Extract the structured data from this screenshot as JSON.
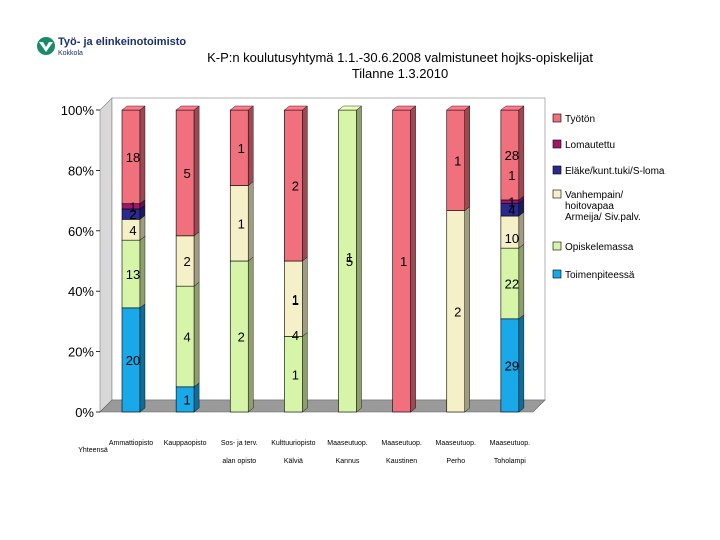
{
  "logo": {
    "name": "Työ- ja elinkeinotoimisto",
    "place": "Kokkola"
  },
  "header": {
    "title_line1": "K-P:n koulutusyhtymä 1.1.-30.6.2008 valmistuneet hojks-opiskelijat",
    "title_line2": "Tilanne 1.3.2010"
  },
  "colors": {
    "Työtön": "#f0707e",
    "Lomautettu": "#a0186e",
    "Eläke/kunt.tuki/S-loma": "#2a2a8c",
    "Vanhempain/ hoitovapaa Armeija/ Siv.palv.": "#f5f0c8",
    "Opiskelemassa": "#d7f5a8",
    "Toimenpiteessä": "#19a8e8"
  },
  "chart_data": {
    "type": "bar",
    "stacked": "percent",
    "title": "K-P:n koulutusyhtymä 1.1.-30.6.2008 valmistuneet hojks-opiskelijat Tilanne 1.3.2010",
    "ylabel": "",
    "ylim": [
      0,
      100
    ],
    "yticks": [
      "0%",
      "20%",
      "40%",
      "60%",
      "80%",
      "100%"
    ],
    "legend_position": "right",
    "categories_top": [
      "Ammattiopisto",
      "Kauppaopisto",
      "Sos- ja terv.",
      "Kulttuuriopisto",
      "Maaseutuop.",
      "Maaseutuop.",
      "Maaseutuop.",
      "Maaseutuop."
    ],
    "categories_bottom": [
      "Yhteensä",
      "",
      "alan opisto",
      "Kälviä",
      "Kannus",
      "Kaustinen",
      "Perho",
      "Toholampi"
    ],
    "series": [
      {
        "name": "Toimenpiteessä",
        "values": [
          20,
          1,
          0,
          0,
          0,
          0,
          0,
          29
        ],
        "labels": [
          "20",
          "1",
          "",
          "",
          "",
          "",
          "",
          "29"
        ]
      },
      {
        "name": "Opiskelemassa",
        "values": [
          13,
          4,
          2,
          1,
          5,
          0,
          0,
          22
        ],
        "labels": [
          "13",
          "4",
          "2",
          "1",
          "5",
          "",
          "",
          "22"
        ]
      },
      {
        "name": "Vanhempain/ hoitovapaa Armeija/ Siv.palv.",
        "values": [
          4,
          2,
          1,
          1,
          0,
          0,
          2,
          10
        ],
        "labels": [
          "4",
          "2",
          "1",
          "1",
          "",
          "",
          "2",
          ""
        ]
      },
      {
        "name": "Eläke/kunt.tuki/S-loma",
        "values": [
          2,
          0,
          0,
          0,
          0,
          0,
          0,
          4
        ],
        "labels": [
          "2",
          "",
          "",
          "",
          "",
          "",
          "",
          "4"
        ]
      },
      {
        "name": "Lomautettu",
        "values": [
          1,
          0,
          0,
          0,
          0,
          0,
          0,
          1
        ],
        "labels": [
          "1",
          "",
          "",
          "",
          "",
          "",
          "",
          "1"
        ]
      },
      {
        "name": "Työtön",
        "values": [
          18,
          5,
          1,
          2,
          0,
          1,
          1,
          28
        ],
        "labels": [
          "18",
          "5",
          "1",
          "2",
          "",
          "1",
          "1",
          "28"
        ]
      }
    ],
    "extra_labels": [
      {
        "category_index": 3,
        "text": "1"
      },
      {
        "category_index": 3,
        "text": "4"
      },
      {
        "category_index": 4,
        "text": "1"
      },
      {
        "category_index": 7,
        "text": "1"
      },
      {
        "category_index": 7,
        "text": "10"
      }
    ]
  }
}
